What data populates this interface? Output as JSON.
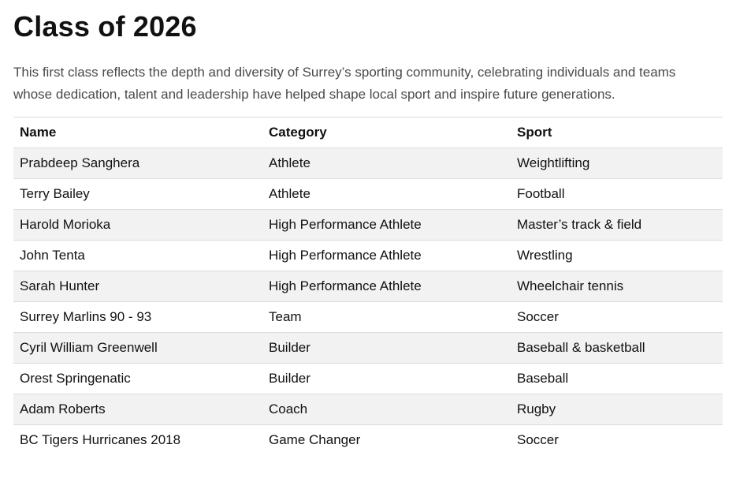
{
  "page": {
    "title": "Class of 2026",
    "intro": "This first class reflects the depth and diversity of Surrey’s sporting community, celebrating individuals and teams whose dedication, talent and leadership have helped shape local sport and inspire future generations."
  },
  "table": {
    "headers": {
      "name": "Name",
      "category": "Category",
      "sport": "Sport"
    },
    "rows": [
      {
        "name": "Prabdeep Sanghera",
        "category": "Athlete",
        "sport": "Weightlifting"
      },
      {
        "name": "Terry Bailey",
        "category": "Athlete",
        "sport": "Football"
      },
      {
        "name": "Harold Morioka",
        "category": "High Performance Athlete",
        "sport": "Master’s track & field"
      },
      {
        "name": "John Tenta",
        "category": "High Performance Athlete",
        "sport": "Wrestling"
      },
      {
        "name": "Sarah Hunter",
        "category": "High Performance Athlete",
        "sport": "Wheelchair tennis"
      },
      {
        "name": "Surrey Marlins 90 - 93",
        "category": "Team",
        "sport": "Soccer"
      },
      {
        "name": "Cyril William Greenwell",
        "category": "Builder",
        "sport": "Baseball & basketball"
      },
      {
        "name": "Orest Springenatic",
        "category": "Builder",
        "sport": "Baseball"
      },
      {
        "name": "Adam Roberts",
        "category": "Coach",
        "sport": "Rugby"
      },
      {
        "name": "BC Tigers Hurricanes 2018",
        "category": "Game Changer",
        "sport": "Soccer"
      }
    ]
  }
}
